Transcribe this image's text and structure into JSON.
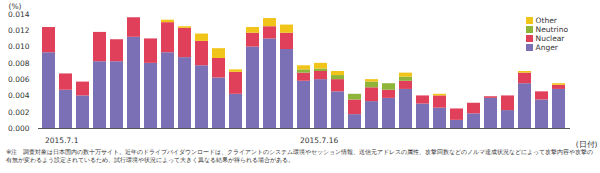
{
  "chart_data": {
    "type": "bar",
    "stacked": true,
    "grid": false,
    "legend": "top-right",
    "y_label": "(%)",
    "x_label": "(日付)",
    "note": "※注　調査対象は日本国内の数十万サイト。近年のドライブバイダウンロードは、クライアントのシステム環境やセッション情報、送信元アドレスの属性、攻撃回数などのノルマ達成状況などによって攻撃内容や攻撃の有無が変わるよう設定されているため、試行環境や状況によって大きく異なる結果が得られる場合がある。",
    "categories": [
      "2015.7.1",
      null,
      null,
      null,
      null,
      null,
      null,
      null,
      null,
      null,
      null,
      null,
      null,
      null,
      null,
      "2015.7.16",
      null,
      null,
      null,
      null,
      null,
      null,
      null,
      null,
      null,
      null,
      null,
      null,
      null,
      null,
      null
    ],
    "ylim": [
      0,
      0.014
    ],
    "yticks": [
      {
        "value": 0,
        "label": "0.000"
      },
      {
        "value": 0.002,
        "label": "0.002"
      },
      {
        "value": 0.004,
        "label": "0.004"
      },
      {
        "value": 0.006,
        "label": "0.006"
      },
      {
        "value": 0.008,
        "label": "0.008"
      },
      {
        "value": 0.01,
        "label": "0.010"
      },
      {
        "value": 0.012,
        "label": "0.012"
      },
      {
        "value": 0.014,
        "label": "0.014"
      }
    ],
    "series": [
      {
        "name": "Anger",
        "color": "#7b70b5",
        "values": [
          0.0093,
          0.0047,
          0.004,
          0.0082,
          0.0082,
          0.0112,
          0.008,
          0.0093,
          0.0087,
          0.0077,
          0.0062,
          0.0042,
          0.01,
          0.011,
          0.0097,
          0.0058,
          0.006,
          0.0045,
          0.0017,
          0.0033,
          0.0037,
          0.0048,
          0.003,
          0.0025,
          0.001,
          0.0018,
          0.0037,
          0.0022,
          0.0055,
          0.0035,
          0.0048
        ]
      },
      {
        "name": "Nuclear",
        "color": "#e0405a",
        "values": [
          0.0031,
          0.002,
          0.0017,
          0.0036,
          0.0027,
          0.0024,
          0.003,
          0.0037,
          0.0036,
          0.003,
          0.0024,
          0.0027,
          0.0017,
          0.0015,
          0.002,
          0.001,
          0.001,
          0.0015,
          0.0018,
          0.0017,
          0.001,
          0.001,
          0.001,
          0.0015,
          0.0014,
          0.0013,
          0.0002,
          0.0018,
          0.0013,
          0.001,
          0.0005
        ]
      },
      {
        "name": "Neutrino",
        "color": "#8fb43a",
        "values": [
          0,
          0,
          0,
          0,
          0,
          0,
          0,
          0,
          0,
          0,
          0,
          0,
          0,
          0,
          0,
          0.0004,
          0.0003,
          0.0005,
          0.0007,
          0.0007,
          0.0008,
          0.0005,
          0,
          0,
          0,
          0,
          0,
          0,
          0,
          0,
          0
        ]
      },
      {
        "name": "Other",
        "color": "#f0c419",
        "values": [
          0,
          0,
          0,
          0,
          0,
          0,
          0,
          0.0003,
          0.0002,
          0.0009,
          0.0012,
          0.0003,
          0.0007,
          0.001,
          0.001,
          0.0005,
          0.0007,
          0.0005,
          0,
          0.0003,
          0,
          0.0005,
          0,
          0.0002,
          0,
          0,
          0,
          0,
          0.0002,
          0,
          0.0002
        ]
      }
    ]
  }
}
